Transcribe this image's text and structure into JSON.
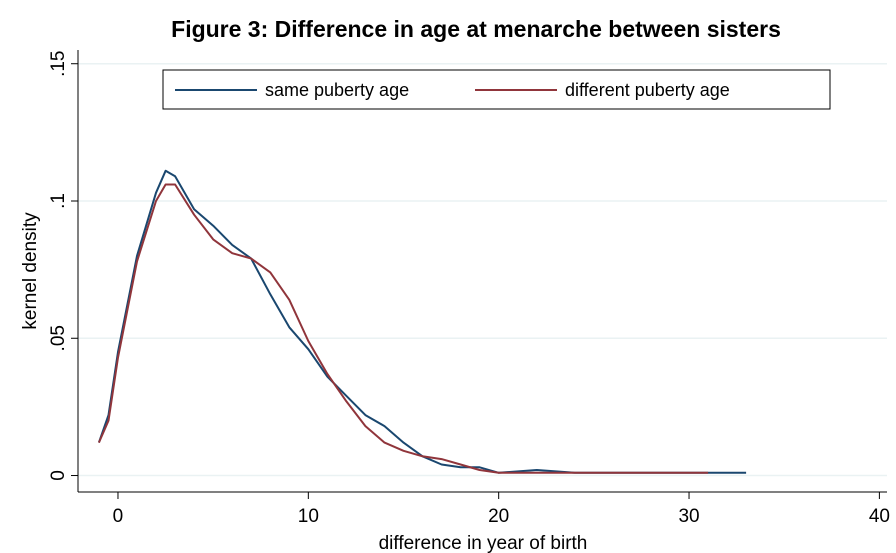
{
  "chart_data": {
    "type": "line",
    "title": "Figure 3: Difference in age at menarche between sisters",
    "xlabel": "difference in year of birth",
    "ylabel": "kernel density",
    "x": [
      -1,
      -0.5,
      0,
      1,
      2,
      2.5,
      3,
      4,
      5,
      6,
      7,
      8,
      9,
      10,
      11,
      12,
      13,
      14,
      15,
      16,
      17,
      18,
      19,
      20,
      22,
      24,
      26,
      28,
      30,
      31,
      33
    ],
    "series": [
      {
        "name": "same puberty age",
        "color": "#1a476f",
        "values": [
          0.012,
          0.022,
          0.045,
          0.08,
          0.103,
          0.111,
          0.109,
          0.097,
          0.091,
          0.084,
          0.079,
          0.066,
          0.054,
          0.046,
          0.036,
          0.029,
          0.022,
          0.018,
          0.012,
          0.007,
          0.004,
          0.003,
          0.003,
          0.001,
          0.002,
          0.001,
          0.001,
          0.001,
          0.001,
          0.001,
          0.001
        ]
      },
      {
        "name": "different puberty age",
        "color": "#90353b",
        "values": [
          0.012,
          0.02,
          0.043,
          0.078,
          0.1,
          0.106,
          0.106,
          0.095,
          0.086,
          0.081,
          0.079,
          0.074,
          0.064,
          0.049,
          0.037,
          0.027,
          0.018,
          0.012,
          0.009,
          0.007,
          0.006,
          0.004,
          0.002,
          0.001,
          0.001,
          0.001,
          0.001,
          0.001,
          0.001,
          0.001,
          null
        ]
      }
    ],
    "xlim": [
      -2.1,
      40.4
    ],
    "xticks": [
      0,
      10,
      20,
      30,
      40
    ],
    "ylim": [
      -0.006,
      0.155
    ],
    "yticks": [
      0,
      {
        "value": 0.05,
        "label": ".05"
      },
      {
        "value": 0.1,
        "label": ".1"
      },
      {
        "value": 0.15,
        "label": ".15"
      }
    ],
    "grid": true,
    "legend": "top"
  }
}
